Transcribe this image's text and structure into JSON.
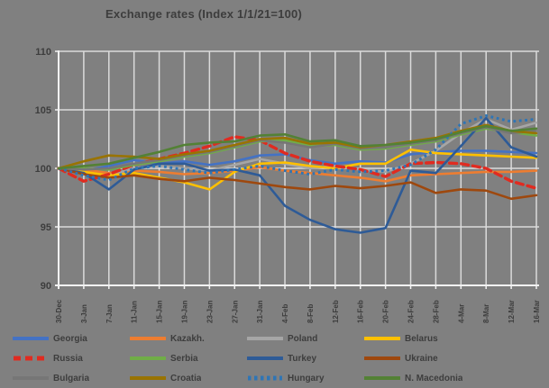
{
  "title": "Exchange rates (Index 1/1/21=100)",
  "colors": {
    "background": "#808080",
    "gridline": "#DBDBDB",
    "axis": "#F2F2F2",
    "text": "#3d3d3d"
  },
  "chart_data": {
    "type": "line",
    "title": "Exchange rates (Index 1/1/21=100)",
    "xlabel": "",
    "ylabel": "",
    "ylim": [
      90,
      110
    ],
    "yticks": [
      110,
      105,
      100,
      95,
      90
    ],
    "grid": true,
    "legend_position": "bottom",
    "x": [
      "30-Dec",
      "3-Jan",
      "7-Jan",
      "11-Jan",
      "15-Jan",
      "19-Jan",
      "23-Jan",
      "27-Jan",
      "31-Jan",
      "4-Feb",
      "8-Feb",
      "12-Feb",
      "16-Feb",
      "20-Feb",
      "24-Feb",
      "28-Feb",
      "4-Mar",
      "8-Mar",
      "12-Mar",
      "16-Mar"
    ],
    "series": [
      {
        "name": "Georgia",
        "color": "#4472C4",
        "style": "solid",
        "values": [
          100,
          99.8,
          100.2,
          100.7,
          100.4,
          100.6,
          100.3,
          100.6,
          101.1,
          101.2,
          100.7,
          100.4,
          100.6,
          100.5,
          101.2,
          101.4,
          101.5,
          101.5,
          101.4,
          101.3
        ]
      },
      {
        "name": "Kazakh.",
        "color": "#ED7D31",
        "style": "solid",
        "values": [
          100,
          99.9,
          99.6,
          99.8,
          99.7,
          99.5,
          99.6,
          99.8,
          100.1,
          99.8,
          99.6,
          99.4,
          99.2,
          98.9,
          99.4,
          99.5,
          99.6,
          99.7,
          99.7,
          99.8
        ]
      },
      {
        "name": "Poland",
        "color": "#A6A6A6",
        "style": "solid",
        "values": [
          100,
          99.6,
          99.4,
          100.0,
          100.2,
          100.0,
          99.8,
          100.3,
          100.8,
          100.4,
          100.0,
          100.2,
          99.9,
          99.7,
          100.4,
          101.5,
          103.0,
          104.2,
          103.3,
          103.9
        ]
      },
      {
        "name": "Belarus",
        "color": "#FFC000",
        "style": "solid",
        "values": [
          100,
          99.7,
          99.4,
          99.6,
          99.2,
          98.8,
          98.2,
          99.7,
          100.4,
          100.5,
          100.2,
          100.0,
          100.4,
          100.4,
          101.6,
          101.3,
          101.2,
          101.1,
          101.0,
          100.9
        ]
      },
      {
        "name": "Russia",
        "color": "#E02B20",
        "style": "dashed",
        "values": [
          100,
          98.9,
          99.5,
          100.3,
          100.8,
          101.3,
          101.9,
          102.7,
          102.4,
          101.3,
          100.6,
          100.2,
          99.9,
          99.3,
          100.4,
          100.5,
          100.4,
          100.0,
          98.9,
          98.3
        ]
      },
      {
        "name": "Serbia",
        "color": "#70AD47",
        "style": "solid",
        "values": [
          100,
          100.0,
          99.9,
          100.3,
          100.6,
          101.0,
          101.3,
          101.8,
          102.3,
          102.4,
          101.9,
          102.0,
          101.6,
          101.7,
          102.0,
          102.3,
          102.9,
          103.4,
          103.1,
          102.8
        ]
      },
      {
        "name": "Turkey",
        "color": "#2E5B97",
        "style": "solid",
        "values": [
          100,
          99.6,
          98.2,
          99.9,
          100.4,
          100.4,
          99.8,
          99.9,
          99.4,
          96.8,
          95.6,
          94.8,
          94.5,
          94.9,
          99.8,
          99.6,
          101.9,
          104.3,
          101.8,
          101.0
        ]
      },
      {
        "name": "Ukraine",
        "color": "#9E480E",
        "style": "solid",
        "values": [
          100,
          99.5,
          99.2,
          99.4,
          99.1,
          98.9,
          99.2,
          99.0,
          98.7,
          98.4,
          98.2,
          98.5,
          98.3,
          98.5,
          98.8,
          97.9,
          98.2,
          98.1,
          97.4,
          97.7
        ]
      },
      {
        "name": "Bulgaria",
        "color": "#767676",
        "style": "solid",
        "values": [
          100,
          99.9,
          100.0,
          100.4,
          100.7,
          101.1,
          101.4,
          101.9,
          102.4,
          102.2,
          101.8,
          102.1,
          101.7,
          101.8,
          102.1,
          102.4,
          103.0,
          103.5,
          103.0,
          103.2
        ]
      },
      {
        "name": "Croatia",
        "color": "#997300",
        "style": "solid",
        "values": [
          100,
          100.6,
          101.1,
          101.0,
          100.8,
          101.2,
          101.5,
          102.0,
          102.5,
          102.6,
          102.1,
          102.2,
          101.8,
          102.0,
          102.3,
          102.6,
          103.2,
          103.7,
          103.2,
          103.0
        ]
      },
      {
        "name": "Hungary",
        "color": "#2E75B6",
        "style": "dotted",
        "values": [
          100,
          99.4,
          99.0,
          100.0,
          100.2,
          99.9,
          99.6,
          99.9,
          100.2,
          99.8,
          99.5,
          99.9,
          99.7,
          99.8,
          100.3,
          101.6,
          103.8,
          104.5,
          104.0,
          104.2
        ]
      },
      {
        "name": "N. Macedonia",
        "color": "#538135",
        "style": "solid",
        "values": [
          100,
          100.2,
          100.4,
          100.9,
          101.4,
          102.0,
          102.2,
          102.3,
          102.8,
          102.9,
          102.3,
          102.4,
          101.9,
          102.0,
          102.2,
          102.5,
          103.1,
          103.6,
          103.2,
          103.4
        ]
      }
    ]
  }
}
